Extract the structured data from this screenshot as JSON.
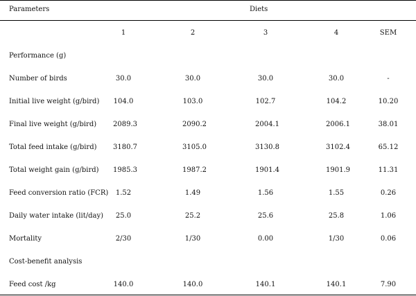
{
  "table": {
    "header": {
      "parameters": "Parameters",
      "diets": "Diets"
    },
    "columns": [
      "1",
      "2",
      "3",
      "4",
      "SEM"
    ],
    "rows": [
      {
        "label": "Performance (g)",
        "values": [
          "",
          "",
          "",
          "",
          ""
        ]
      },
      {
        "label": "Number of birds",
        "values": [
          "30.0",
          "30.0",
          "30.0",
          "30.0",
          "-"
        ]
      },
      {
        "label": "Initial live weight (g/bird)",
        "values": [
          "104.0",
          "103.0",
          "102.7",
          "104.2",
          "10.20"
        ]
      },
      {
        "label": "Final live weight (g/bird)",
        "values": [
          "2089.3",
          "2090.2",
          "2004.1",
          "2006.1",
          "38.01"
        ]
      },
      {
        "label": "Total feed intake (g/bird)",
        "values": [
          "3180.7",
          "3105.0",
          "3130.8",
          "3102.4",
          "65.12"
        ]
      },
      {
        "label": "Total weight gain (g/bird)",
        "values": [
          "1985.3",
          "1987.2",
          "1901.4",
          "1901.9",
          "11.31"
        ]
      },
      {
        "label": "Feed conversion ratio (FCR)",
        "values": [
          "1.52",
          "1.49",
          "1.56",
          "1.55",
          "0.26"
        ]
      },
      {
        "label": "Daily water intake (lit/day)",
        "values": [
          "25.0",
          "25.2",
          "25.6",
          "25.8",
          "1.06"
        ]
      },
      {
        "label": "Mortality",
        "values": [
          "2/30",
          "1/30",
          "0.00",
          "1/30",
          "0.06"
        ]
      },
      {
        "label": "Cost-benefit analysis",
        "values": [
          "",
          "",
          "",
          "",
          ""
        ]
      },
      {
        "label": "Feed cost /kg",
        "values": [
          "140.0",
          "140.0",
          "140.1",
          "140.1",
          "7.90"
        ]
      }
    ]
  }
}
